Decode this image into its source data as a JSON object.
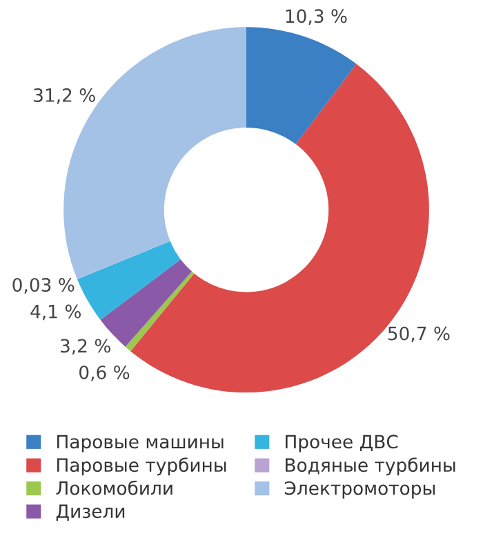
{
  "chart_data": {
    "type": "donut",
    "categories": [
      "Паровые машины",
      "Паровые турбины",
      "Локомобили",
      "Дизели",
      "Прочее ДВС",
      "Водяные турбины",
      "Электромоторы"
    ],
    "values": [
      10.3,
      50.7,
      0.6,
      3.2,
      4.1,
      0.03,
      31.2
    ],
    "colors": [
      "#3b7fc4",
      "#dc4a4a",
      "#9cc84f",
      "#8a5aa8",
      "#35b4e0",
      "#b9a3d2",
      "#a4c1e6"
    ],
    "value_labels": [
      "10,3 %",
      "50,7 %",
      "0,6 %",
      "3,2 %",
      "4,1 %",
      "0,03 %",
      "31,2 %"
    ],
    "legend": "bottom"
  }
}
